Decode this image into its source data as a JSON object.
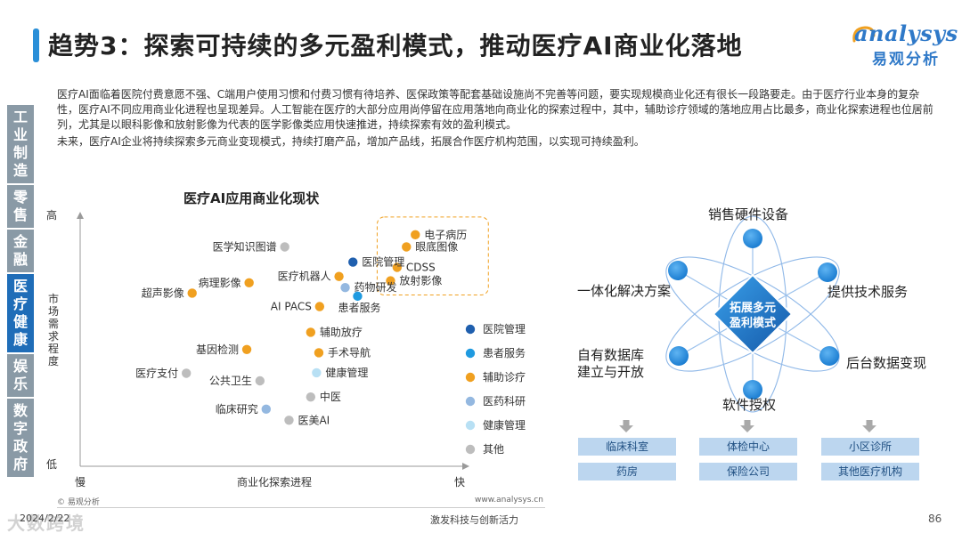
{
  "title": "趋势3：探索可持续的多元盈利模式，推动医疗AI商业化落地",
  "logo": {
    "en": "analysys",
    "cn": "易观分析"
  },
  "sidebar": [
    {
      "label": "工业制造",
      "active": false
    },
    {
      "label": "零售",
      "active": false
    },
    {
      "label": "金融",
      "active": false
    },
    {
      "label": "医疗健康",
      "active": true
    },
    {
      "label": "娱乐",
      "active": false
    },
    {
      "label": "数字政府",
      "active": false
    }
  ],
  "intro": {
    "p1": "医疗AI面临着医院付费意愿不强、C端用户使用习惯和付费习惯有待培养、医保政策等配套基础设施尚不完善等问题，要实现规模商业化还有很长一段路要走。由于医疗行业本身的复杂性，医疗AI不同应用商业化进程也呈现差异。人工智能在医疗的大部分应用尚停留在应用落地向商业化的探索过程中，其中，辅助诊疗领域的落地应用占比最多，商业化探索进程也位居前列，尤其是以眼科影像和放射影像为代表的医学影像类应用快速推进，持续探索有效的盈利模式。",
    "p2": "未来，医疗AI企业将持续探索多元商业变现模式，持续打磨产品，增加产品线，拓展合作医疗机构范围，以实现可持续盈利。"
  },
  "chart_data": {
    "type": "scatter",
    "title": "医疗AI应用商业化现状",
    "xlabel": "商业化探索进程",
    "ylabel": "市场需求程度",
    "x_low": "慢",
    "x_high": "快",
    "y_low": "低",
    "y_high": "高",
    "xlim": [
      0,
      100
    ],
    "ylim": [
      0,
      100
    ],
    "categories": [
      {
        "name": "医院管理",
        "color": "#1f5fae"
      },
      {
        "name": "患者服务",
        "color": "#1f9ae0"
      },
      {
        "name": "辅助诊疗",
        "color": "#f0a020"
      },
      {
        "name": "医药科研",
        "color": "#94b8e0"
      },
      {
        "name": "健康管理",
        "color": "#b8e0f4"
      },
      {
        "name": "其他",
        "color": "#bdbdbd"
      }
    ],
    "points": [
      {
        "label": "电子病历",
        "category": "辅助诊疗",
        "x": 86.5,
        "y": 91.6
      },
      {
        "label": "眼底图像",
        "category": "辅助诊疗",
        "x": 84.2,
        "y": 86.8
      },
      {
        "label": "CDSS",
        "category": "辅助诊疗",
        "x": 81.8,
        "y": 78.7
      },
      {
        "label": "放射影像",
        "category": "辅助诊疗",
        "x": 80.1,
        "y": 73.4
      },
      {
        "label": "医学知识图谱",
        "category": "其他",
        "x": 52.8,
        "y": 86.8
      },
      {
        "label": "医院管理",
        "category": "医院管理",
        "x": 70.4,
        "y": 80.8
      },
      {
        "label": "医疗机器人",
        "category": "辅助诊疗",
        "x": 66.8,
        "y": 75.1
      },
      {
        "label": "药物研发",
        "category": "医药科研",
        "x": 68.4,
        "y": 70.7
      },
      {
        "label": "患者服务",
        "category": "患者服务",
        "x": 71.6,
        "y": 67.3
      },
      {
        "label": "超声影像",
        "category": "辅助诊疗",
        "x": 28.9,
        "y": 68.5
      },
      {
        "label": "病理影像",
        "category": "辅助诊疗",
        "x": 43.6,
        "y": 72.6
      },
      {
        "label": "AI PACS",
        "category": "辅助诊疗",
        "x": 61.8,
        "y": 63.2
      },
      {
        "label": "辅助放疗",
        "category": "辅助诊疗",
        "x": 59.5,
        "y": 53.0
      },
      {
        "label": "基因检测",
        "category": "辅助诊疗",
        "x": 43.0,
        "y": 46.2
      },
      {
        "label": "手术导航",
        "category": "辅助诊疗",
        "x": 61.6,
        "y": 44.9
      },
      {
        "label": "医疗支付",
        "category": "其他",
        "x": 27.4,
        "y": 36.8
      },
      {
        "label": "公共卫生",
        "category": "其他",
        "x": 46.4,
        "y": 33.8
      },
      {
        "label": "健康管理",
        "category": "健康管理",
        "x": 61.0,
        "y": 37.0
      },
      {
        "label": "中医",
        "category": "其他",
        "x": 59.5,
        "y": 27.4
      },
      {
        "label": "临床研究",
        "category": "医药科研",
        "x": 48.0,
        "y": 22.6
      },
      {
        "label": "医美AI",
        "category": "其他",
        "x": 53.9,
        "y": 18.2
      }
    ],
    "highlight": [
      "电子病历",
      "眼底图像",
      "CDSS",
      "放射影像"
    ]
  },
  "diagram": {
    "center": "拓展多元盈利模式",
    "nodes": [
      "销售硬件设备",
      "提供技术服务",
      "后台数据变现",
      "软件授权",
      "自有数据库建立与开放",
      "一体化解决方案"
    ],
    "bottom_boxes": [
      [
        "临床科室",
        "药房"
      ],
      [
        "体检中心",
        "保险公司"
      ],
      [
        "小区诊所",
        "其他医疗机构"
      ]
    ]
  },
  "footer": {
    "copyright": "© 易观分析",
    "url": "www.analysys.cn",
    "date": "2024/2/22",
    "slogan": "激发科技与创新活力",
    "page": "86",
    "watermark": "大数跨境"
  }
}
